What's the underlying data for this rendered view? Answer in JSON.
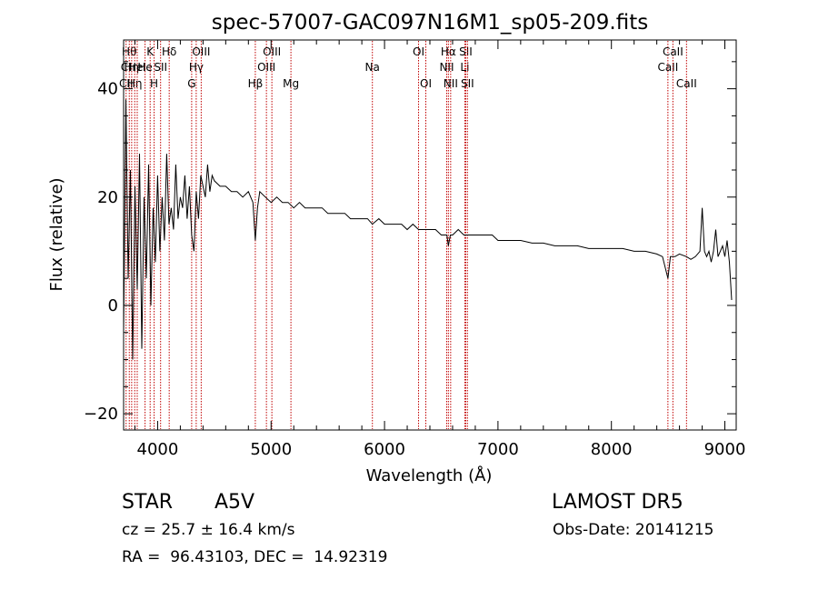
{
  "chart_data": {
    "type": "line",
    "title": "spec-57007-GAC097N16M1_sp05-209.fits",
    "xlabel": "Wavelength (Å)",
    "ylabel": "Flux (relative)",
    "xlim": [
      3700,
      9100
    ],
    "ylim": [
      -23,
      49
    ],
    "xticks": [
      4000,
      5000,
      6000,
      7000,
      8000,
      9000
    ],
    "yticks": [
      -20,
      0,
      20,
      40
    ],
    "x_minor_step": 200,
    "y_minor_step": 5,
    "grid": false,
    "line_color": "#000000",
    "marker_color": "#c00000",
    "series": [
      {
        "x": [
          3700,
          3720,
          3740,
          3760,
          3780,
          3800,
          3820,
          3840,
          3860,
          3880,
          3900,
          3920,
          3940,
          3960,
          3980,
          4000,
          4020,
          4040,
          4060,
          4080,
          4100,
          4120,
          4140,
          4160,
          4180,
          4200,
          4220,
          4240,
          4260,
          4280,
          4300,
          4320,
          4340,
          4360,
          4380,
          4400,
          4420,
          4440,
          4460,
          4480,
          4500,
          4550,
          4600,
          4650,
          4700,
          4750,
          4800,
          4840,
          4861,
          4880,
          4900,
          4950,
          5000,
          5050,
          5100,
          5150,
          5200,
          5250,
          5300,
          5350,
          5400,
          5450,
          5500,
          5550,
          5600,
          5650,
          5700,
          5750,
          5800,
          5850,
          5893,
          5950,
          6000,
          6050,
          6100,
          6150,
          6200,
          6250,
          6300,
          6350,
          6400,
          6450,
          6500,
          6550,
          6563,
          6580,
          6600,
          6650,
          6700,
          6750,
          6800,
          6850,
          6900,
          6950,
          7000,
          7100,
          7200,
          7300,
          7400,
          7500,
          7600,
          7700,
          7800,
          7900,
          8000,
          8100,
          8200,
          8300,
          8400,
          8450,
          8498,
          8520,
          8542,
          8560,
          8600,
          8662,
          8700,
          8740,
          8780,
          8800,
          8820,
          8840,
          8860,
          8880,
          8900,
          8920,
          8940,
          8960,
          8980,
          9000,
          9020,
          9040,
          9060
        ],
        "y": [
          -5,
          38,
          5,
          25,
          -10,
          22,
          3,
          28,
          -8,
          20,
          5,
          26,
          0,
          18,
          8,
          24,
          10,
          20,
          12,
          28,
          15,
          18,
          14,
          26,
          16,
          20,
          18,
          24,
          16,
          22,
          13,
          10,
          21,
          16,
          24,
          22,
          20,
          26,
          21,
          24,
          23,
          22,
          22,
          21,
          21,
          20,
          21,
          19,
          12,
          18,
          21,
          20,
          19,
          20,
          19,
          19,
          18,
          19,
          18,
          18,
          18,
          18,
          17,
          17,
          17,
          17,
          16,
          16,
          16,
          16,
          15,
          16,
          15,
          15,
          15,
          15,
          14,
          15,
          14,
          14,
          14,
          14,
          13,
          13,
          11,
          13,
          13,
          14,
          13,
          13,
          13,
          13,
          13,
          13,
          12,
          12,
          12,
          11.5,
          11.5,
          11,
          11,
          11,
          10.5,
          10.5,
          10.5,
          10.5,
          10,
          10,
          9.5,
          9,
          5,
          9,
          9,
          9,
          9.5,
          9,
          8.5,
          9,
          10,
          18,
          10,
          9,
          10,
          8,
          10,
          14,
          9,
          10,
          11,
          9,
          12,
          8,
          1
        ]
      }
    ],
    "line_markers": [
      {
        "x": 3722,
        "labels": [
          [
            "CII",
            2
          ],
          [
            "CI",
            1
          ]
        ]
      },
      {
        "x": 3750,
        "labels": [
          [
            "Hθ",
            0
          ]
        ]
      },
      {
        "x": 3771,
        "labels": [
          [
            "Hη",
            1
          ]
        ]
      },
      {
        "x": 3798,
        "labels": [
          [
            "Hη",
            2
          ]
        ]
      },
      {
        "x": 3820,
        "labels": [
          [
            "HeI",
            1
          ]
        ]
      },
      {
        "x": 3889,
        "labels": [
          [
            "He",
            1
          ]
        ]
      },
      {
        "x": 3934,
        "labels": [
          [
            "K",
            0
          ]
        ]
      },
      {
        "x": 3969,
        "labels": [
          [
            "H",
            2
          ]
        ]
      },
      {
        "x": 4026,
        "labels": [
          [
            "SII",
            1
          ]
        ]
      },
      {
        "x": 4102,
        "labels": [
          [
            "Hδ",
            0
          ]
        ]
      },
      {
        "x": 4300,
        "labels": [
          [
            "G",
            2
          ]
        ]
      },
      {
        "x": 4340,
        "labels": [
          [
            "Hγ",
            1
          ]
        ]
      },
      {
        "x": 4384,
        "labels": [
          [
            "OIII",
            0
          ]
        ]
      },
      {
        "x": 4861,
        "labels": [
          [
            "Hβ",
            2
          ]
        ]
      },
      {
        "x": 4959,
        "labels": [
          [
            "OIII",
            1
          ]
        ]
      },
      {
        "x": 5007,
        "labels": [
          [
            "OIII",
            0
          ]
        ]
      },
      {
        "x": 5175,
        "labels": [
          [
            "Mg",
            2
          ]
        ]
      },
      {
        "x": 5893,
        "labels": [
          [
            "Na",
            1
          ]
        ]
      },
      {
        "x": 6300,
        "labels": [
          [
            "OI",
            0
          ]
        ]
      },
      {
        "x": 6364,
        "labels": [
          [
            "OI",
            2
          ]
        ]
      },
      {
        "x": 6548,
        "labels": [
          [
            "NII",
            1
          ]
        ]
      },
      {
        "x": 6563,
        "labels": [
          [
            "Hα",
            0
          ]
        ]
      },
      {
        "x": 6583,
        "labels": [
          [
            "NII",
            2
          ]
        ]
      },
      {
        "x": 6708,
        "labels": [
          [
            "Li",
            1
          ]
        ]
      },
      {
        "x": 6716,
        "labels": [
          [
            "SII",
            0
          ]
        ]
      },
      {
        "x": 6731,
        "labels": [
          [
            "SII",
            2
          ]
        ]
      },
      {
        "x": 8498,
        "labels": [
          [
            "CaII",
            1
          ]
        ]
      },
      {
        "x": 8542,
        "labels": [
          [
            "CaII",
            0
          ]
        ]
      },
      {
        "x": 8662,
        "labels": [
          [
            "CaII",
            2
          ]
        ]
      }
    ]
  },
  "info": {
    "object_class": "STAR",
    "subclass": "A5V",
    "survey": "LAMOST DR5",
    "cz": "cz = 25.7 ± 16.4 km/s",
    "obs_date": "Obs-Date: 20141215",
    "coords": "RA =  96.43103, DEC =  14.92319"
  }
}
